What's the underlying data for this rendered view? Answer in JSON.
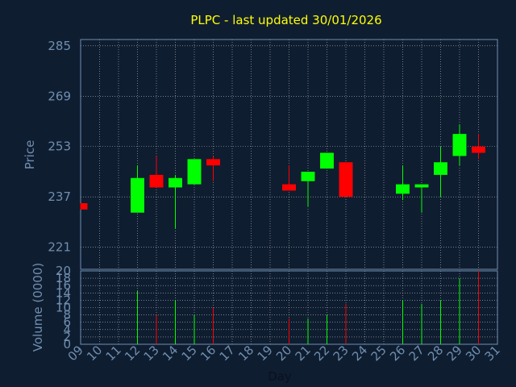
{
  "chart_data": [
    {
      "type": "candlestick",
      "title": "PLPC - last updated 30/01/2026",
      "ylabel": "Price",
      "ylim": [
        214,
        287
      ],
      "yticks": [
        221,
        237,
        253,
        269,
        285
      ],
      "x_domain": [
        "09",
        "31"
      ],
      "grid": true,
      "colors": {
        "up": "#00ff00",
        "down": "#ff0000",
        "title": "#ffff00",
        "axis": "#6f8fb0",
        "grid": "#ffffff",
        "background": "#0f1d30"
      },
      "candles": [
        {
          "day": "09",
          "open": 235,
          "high": 235,
          "low": 233,
          "close": 233
        },
        {
          "day": "12",
          "open": 232,
          "high": 247,
          "low": 232,
          "close": 243
        },
        {
          "day": "13",
          "open": 244,
          "high": 250,
          "low": 240,
          "close": 240
        },
        {
          "day": "14",
          "open": 240,
          "high": 244,
          "low": 227,
          "close": 243
        },
        {
          "day": "15",
          "open": 241,
          "high": 249,
          "low": 241,
          "close": 249
        },
        {
          "day": "16",
          "open": 249,
          "high": 250,
          "low": 242,
          "close": 247
        },
        {
          "day": "20",
          "open": 241,
          "high": 247,
          "low": 239,
          "close": 239
        },
        {
          "day": "21",
          "open": 242,
          "high": 245,
          "low": 234,
          "close": 245
        },
        {
          "day": "22",
          "open": 246,
          "high": 251,
          "low": 246,
          "close": 251
        },
        {
          "day": "23",
          "open": 248,
          "high": 248,
          "low": 237,
          "close": 237
        },
        {
          "day": "26",
          "open": 238,
          "high": 247,
          "low": 236,
          "close": 241
        },
        {
          "day": "27",
          "open": 240,
          "high": 241,
          "low": 232,
          "close": 241
        },
        {
          "day": "28",
          "open": 244,
          "high": 253,
          "low": 237,
          "close": 248
        },
        {
          "day": "29",
          "open": 250,
          "high": 260,
          "low": 247,
          "close": 257
        },
        {
          "day": "30",
          "open": 253,
          "high": 257,
          "low": 249,
          "close": 251
        }
      ]
    },
    {
      "type": "bar",
      "ylabel": "Volume (0000)",
      "xlabel": "Day",
      "ylim": [
        0,
        20
      ],
      "yticks": [
        0,
        2,
        4,
        6,
        8,
        10,
        12,
        14,
        16,
        18,
        20
      ],
      "categories": [
        "09",
        "10",
        "11",
        "12",
        "13",
        "14",
        "15",
        "16",
        "17",
        "18",
        "19",
        "20",
        "21",
        "22",
        "23",
        "24",
        "25",
        "26",
        "27",
        "28",
        "29",
        "30",
        "31"
      ],
      "bars": [
        {
          "day": "12",
          "value": 14.5,
          "color": "#00ff00"
        },
        {
          "day": "13",
          "value": 8,
          "color": "#ff0000"
        },
        {
          "day": "14",
          "value": 12,
          "color": "#00ff00"
        },
        {
          "day": "15",
          "value": 8,
          "color": "#00ff00"
        },
        {
          "day": "16",
          "value": 10,
          "color": "#ff0000"
        },
        {
          "day": "20",
          "value": 7,
          "color": "#ff0000"
        },
        {
          "day": "21",
          "value": 7,
          "color": "#00ff00"
        },
        {
          "day": "22",
          "value": 8,
          "color": "#00ff00"
        },
        {
          "day": "23",
          "value": 11,
          "color": "#ff0000"
        },
        {
          "day": "26",
          "value": 12,
          "color": "#00ff00"
        },
        {
          "day": "27",
          "value": 11,
          "color": "#00ff00"
        },
        {
          "day": "28",
          "value": 12,
          "color": "#00ff00"
        },
        {
          "day": "29",
          "value": 18,
          "color": "#00ff00"
        },
        {
          "day": "30",
          "value": 20,
          "color": "#ff0000"
        }
      ]
    }
  ]
}
